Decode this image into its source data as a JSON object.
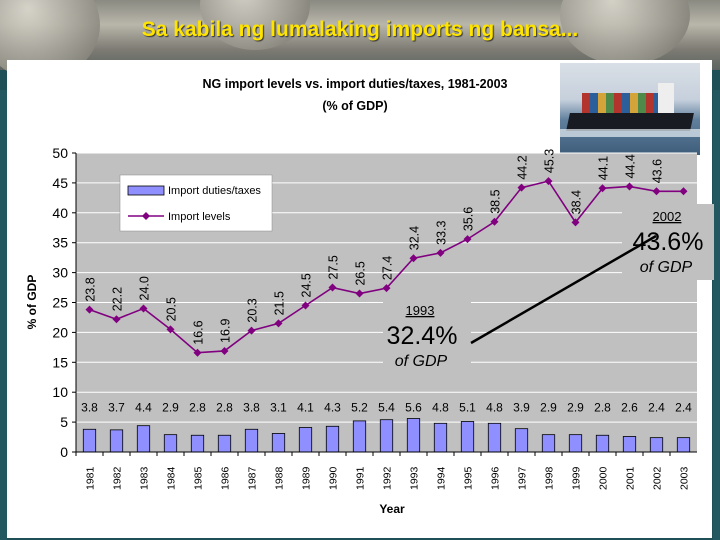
{
  "slide": {
    "title": "Sa kabila ng lumalaking imports ng bansa..."
  },
  "colors": {
    "title": "#ffe400",
    "plot_bg": "#c0c0c0",
    "bars": "#8f8fff",
    "line": "#800080",
    "teal": "#1f4f57"
  },
  "photo": {
    "icon": "container-ship-photo"
  },
  "chart_data": {
    "type": "bar",
    "title": "NG import levels vs. import duties/taxes, 1981-2003",
    "subtitle": "(% of GDP)",
    "xlabel": "Year",
    "ylabel": "% of GDP",
    "ylim": [
      0,
      50
    ],
    "yticks": [
      0,
      5,
      10,
      15,
      20,
      25,
      30,
      35,
      40,
      45,
      50
    ],
    "grid": true,
    "legend_position": "top-left",
    "categories": [
      "1981",
      "1982",
      "1983",
      "1984",
      "1985",
      "1986",
      "1987",
      "1988",
      "1989",
      "1990",
      "1991",
      "1992",
      "1993",
      "1994",
      "1995",
      "1996",
      "1997",
      "1998",
      "1999",
      "2000",
      "2001",
      "2002",
      "2003"
    ],
    "series": [
      {
        "name": "Import duties/taxes",
        "type": "bar",
        "values": [
          3.8,
          3.7,
          4.4,
          2.9,
          2.8,
          2.8,
          3.8,
          3.1,
          4.1,
          4.3,
          5.2,
          5.4,
          5.6,
          4.8,
          5.1,
          4.8,
          3.9,
          2.9,
          2.9,
          2.8,
          2.6,
          2.4,
          2.4
        ],
        "labels": [
          "3.8",
          "3.7",
          "4.4",
          "2.9",
          "2.8",
          "2.8",
          "3.8",
          "3.1",
          "4.1",
          "4.3",
          "5.2",
          "5.4",
          "5.6",
          "4.8",
          "5.1",
          "4.8",
          "3.9",
          "2.9",
          "2.9",
          "2.8",
          "2.6",
          "2.4",
          "2.4"
        ]
      },
      {
        "name": "Import levels",
        "type": "line",
        "values": [
          23.8,
          22.2,
          24.0,
          20.5,
          16.6,
          16.9,
          20.3,
          21.5,
          24.5,
          27.5,
          26.5,
          27.4,
          32.4,
          33.3,
          35.6,
          38.5,
          44.2,
          45.3,
          38.4,
          44.1,
          44.4,
          43.6,
          43.6
        ],
        "labels": [
          "23.8",
          "22.2",
          "24.0",
          "20.5",
          "16.6",
          "16.9",
          "20.3",
          "21.5",
          "24.5",
          "27.5",
          "26.5",
          "27.4",
          "32.4",
          "33.3",
          "35.6",
          "38.5",
          "44.2",
          "45.3",
          "38.4",
          "44.1",
          "44.4",
          "43.6",
          ""
        ]
      }
    ],
    "annotations": [
      {
        "year": "1993",
        "value": "32.4%",
        "unit": "of GDP",
        "point_index": 12
      },
      {
        "year": "2002",
        "value": "43.6%",
        "unit": "of GDP",
        "point_index": 21
      }
    ]
  }
}
